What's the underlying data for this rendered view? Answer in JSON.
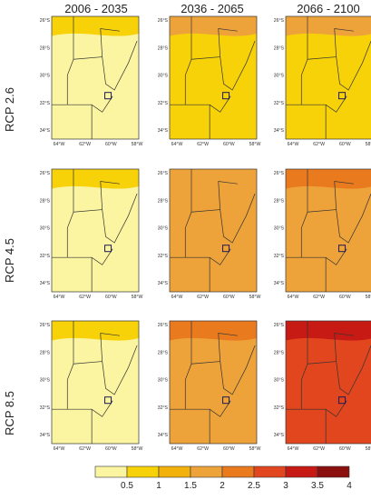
{
  "columns": [
    "2006 - 2035",
    "2036 - 2065",
    "2066 - 2100"
  ],
  "rows": [
    "RCP 2.6",
    "RCP 4.5",
    "RCP 8.5"
  ],
  "lat_ticks": [
    "26°S",
    "28°S",
    "30°S",
    "32°S",
    "34°S"
  ],
  "lon_ticks": [
    "64°W",
    "62°W",
    "60°W",
    "58°W"
  ],
  "legend": {
    "labels": [
      "0.5",
      "1",
      "1.5",
      "2",
      "2.5",
      "3",
      "3.5",
      "4"
    ],
    "colors": [
      "#fbf5a1",
      "#f8d209",
      "#f3b10b",
      "#eea33a",
      "#ea7a1e",
      "#e1461e",
      "#c71a14",
      "#8b0f0f"
    ]
  },
  "panels": [
    [
      {
        "base": "#fbf5a1",
        "top": "#f8d209"
      },
      {
        "base": "#f8d209",
        "top": "#eea33a"
      },
      {
        "base": "#f8d209",
        "top": "#eea33a"
      }
    ],
    [
      {
        "base": "#fbf5a1",
        "top": "#f8d209"
      },
      {
        "base": "#eea33a",
        "top": "#eea33a"
      },
      {
        "base": "#eea33a",
        "top": "#ea7a1e"
      }
    ],
    [
      {
        "base": "#fbf5a1",
        "top": "#f8d209"
      },
      {
        "base": "#eea33a",
        "top": "#ea7a1e"
      },
      {
        "base": "#e1461e",
        "top": "#c71a14"
      }
    ]
  ]
}
